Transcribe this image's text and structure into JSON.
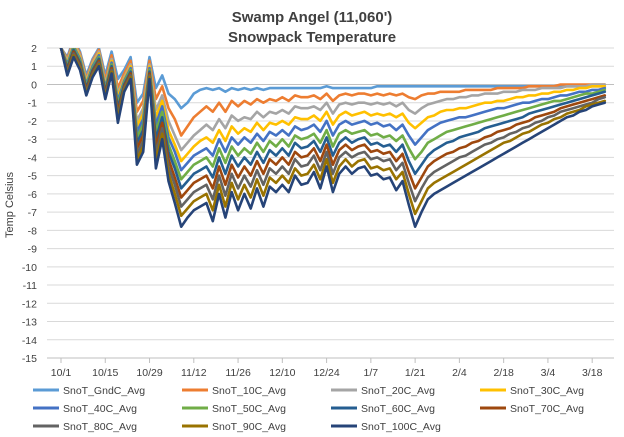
{
  "chart_data": {
    "type": "line",
    "title": "Swamp Angel (11,060')",
    "subtitle": "Snowpack Temperature",
    "xlabel": "",
    "ylabel": "Temp Celsius",
    "ylim": [
      -15,
      2
    ],
    "yticks": [
      2,
      1,
      0,
      -1,
      -2,
      -3,
      -4,
      -5,
      -6,
      -7,
      -8,
      -9,
      -10,
      -11,
      -12,
      -13,
      -14,
      -15
    ],
    "xlim": [
      0,
      173
    ],
    "xtick_labels": [
      "10/1",
      "10/15",
      "10/29",
      "11/12",
      "11/26",
      "12/10",
      "12/24",
      "1/7",
      "1/21",
      "2/4",
      "2/18",
      "3/4",
      "3/18"
    ],
    "xtick_days": [
      0,
      14,
      28,
      42,
      56,
      70,
      84,
      98,
      112,
      126,
      140,
      154,
      168
    ],
    "grid": "horizontal",
    "legend_position": "bottom",
    "x_days": [
      0,
      2,
      4,
      6,
      8,
      10,
      12,
      14,
      16,
      18,
      20,
      22,
      24,
      26,
      28,
      30,
      32,
      34,
      36,
      38,
      40,
      42,
      44,
      46,
      48,
      50,
      52,
      54,
      56,
      58,
      60,
      62,
      64,
      66,
      68,
      70,
      72,
      74,
      76,
      78,
      80,
      82,
      84,
      86,
      88,
      90,
      92,
      94,
      96,
      98,
      100,
      102,
      104,
      106,
      108,
      110,
      112,
      114,
      116,
      118,
      120,
      122,
      124,
      126,
      128,
      130,
      132,
      134,
      136,
      138,
      140,
      142,
      144,
      146,
      148,
      150,
      152,
      154,
      156,
      158,
      160,
      162,
      164,
      166,
      168,
      170,
      172
    ],
    "series": [
      {
        "name": "SnoT_GndC_Avg",
        "color": "#5b9bd5",
        "values": [
          2.0,
          1.5,
          2.5,
          1.8,
          0.5,
          1.4,
          2.0,
          0.5,
          1.8,
          0.3,
          0.8,
          1.5,
          -1.0,
          -0.5,
          1.5,
          -0.2,
          0.5,
          -0.5,
          -0.8,
          -1.3,
          -1.0,
          -0.5,
          -0.3,
          -0.2,
          -0.3,
          -0.2,
          -0.4,
          -0.2,
          -0.3,
          -0.2,
          -0.3,
          -0.2,
          -0.3,
          -0.2,
          -0.2,
          -0.2,
          -0.2,
          -0.2,
          -0.2,
          -0.2,
          -0.2,
          -0.2,
          -0.1,
          -0.2,
          -0.2,
          -0.2,
          -0.2,
          -0.2,
          -0.2,
          -0.2,
          -0.1,
          -0.1,
          -0.1,
          -0.1,
          -0.1,
          -0.1,
          -0.1,
          -0.1,
          -0.1,
          -0.1,
          -0.1,
          -0.1,
          -0.1,
          -0.1,
          -0.1,
          -0.1,
          -0.1,
          -0.1,
          -0.1,
          -0.1,
          -0.1,
          -0.1,
          -0.1,
          -0.1,
          -0.1,
          -0.1,
          -0.1,
          -0.1,
          -0.1,
          -0.1,
          -0.1,
          -0.1,
          -0.1,
          -0.1,
          -0.1,
          -0.1,
          -0.1
        ]
      },
      {
        "name": "SnoT_10C_Avg",
        "color": "#ed7d31",
        "values": [
          2.0,
          1.4,
          2.4,
          1.7,
          0.3,
          1.3,
          1.9,
          0.2,
          1.6,
          -0.2,
          0.6,
          1.3,
          -1.5,
          -0.9,
          1.3,
          -0.8,
          -0.1,
          -1.3,
          -1.9,
          -2.8,
          -2.3,
          -1.8,
          -1.5,
          -1.2,
          -1.5,
          -1.0,
          -1.5,
          -0.9,
          -1.2,
          -0.9,
          -1.1,
          -0.8,
          -1.0,
          -0.8,
          -0.9,
          -0.7,
          -0.9,
          -0.6,
          -0.7,
          -0.7,
          -0.6,
          -0.8,
          -0.5,
          -0.9,
          -0.6,
          -0.5,
          -0.6,
          -0.5,
          -0.5,
          -0.6,
          -0.5,
          -0.6,
          -0.5,
          -0.6,
          -0.5,
          -0.7,
          -0.8,
          -0.6,
          -0.5,
          -0.5,
          -0.4,
          -0.4,
          -0.4,
          -0.4,
          -0.3,
          -0.3,
          -0.3,
          -0.3,
          -0.3,
          -0.2,
          -0.2,
          -0.2,
          -0.2,
          -0.2,
          -0.1,
          -0.1,
          -0.1,
          -0.1,
          -0.1,
          0.0,
          0.0,
          0.0,
          0.0,
          0.0,
          0.0,
          0.0,
          0.0
        ]
      },
      {
        "name": "SnoT_20C_Avg",
        "color": "#a5a5a5",
        "values": [
          2.0,
          1.3,
          2.3,
          1.6,
          0.2,
          1.2,
          1.8,
          0.0,
          1.4,
          -0.5,
          0.4,
          1.1,
          -2.0,
          -1.3,
          1.1,
          -1.4,
          -0.6,
          -2.0,
          -2.8,
          -3.6,
          -3.2,
          -2.8,
          -2.5,
          -2.2,
          -2.5,
          -1.9,
          -2.4,
          -1.7,
          -2.0,
          -1.8,
          -1.9,
          -1.5,
          -1.8,
          -1.5,
          -1.6,
          -1.4,
          -1.6,
          -1.2,
          -1.3,
          -1.3,
          -1.2,
          -1.4,
          -1.0,
          -1.6,
          -1.1,
          -1.0,
          -1.1,
          -1.0,
          -1.0,
          -1.1,
          -1.0,
          -1.1,
          -1.0,
          -1.2,
          -1.0,
          -1.4,
          -1.6,
          -1.3,
          -1.1,
          -1.0,
          -0.9,
          -0.8,
          -0.8,
          -0.7,
          -0.7,
          -0.6,
          -0.6,
          -0.5,
          -0.5,
          -0.5,
          -0.4,
          -0.4,
          -0.4,
          -0.3,
          -0.3,
          -0.3,
          -0.2,
          -0.2,
          -0.2,
          -0.2,
          -0.1,
          -0.1,
          -0.1,
          -0.1,
          0.0,
          0.0,
          0.0
        ]
      },
      {
        "name": "SnoT_30C_Avg",
        "color": "#ffc000",
        "values": [
          2.0,
          1.2,
          2.2,
          1.5,
          0.1,
          1.1,
          1.7,
          -0.1,
          1.3,
          -0.7,
          0.3,
          1.0,
          -2.3,
          -1.6,
          1.0,
          -1.8,
          -0.9,
          -2.5,
          -3.3,
          -4.2,
          -3.8,
          -3.4,
          -3.1,
          -2.9,
          -3.2,
          -2.5,
          -3.1,
          -2.3,
          -2.7,
          -2.4,
          -2.6,
          -2.1,
          -2.5,
          -2.1,
          -2.2,
          -2.0,
          -2.2,
          -1.8,
          -1.9,
          -1.9,
          -1.7,
          -2.0,
          -1.5,
          -2.2,
          -1.7,
          -1.5,
          -1.7,
          -1.6,
          -1.5,
          -1.7,
          -1.6,
          -1.7,
          -1.6,
          -1.8,
          -1.6,
          -2.1,
          -2.4,
          -2.1,
          -1.8,
          -1.7,
          -1.5,
          -1.4,
          -1.4,
          -1.3,
          -1.3,
          -1.2,
          -1.1,
          -1.0,
          -1.0,
          -0.9,
          -0.9,
          -0.8,
          -0.7,
          -0.7,
          -0.6,
          -0.6,
          -0.5,
          -0.5,
          -0.4,
          -0.4,
          -0.3,
          -0.3,
          -0.2,
          -0.2,
          -0.1,
          -0.1,
          -0.1
        ]
      },
      {
        "name": "SnoT_40C_Avg",
        "color": "#4472c4",
        "values": [
          2.0,
          1.1,
          2.1,
          1.4,
          0.0,
          1.0,
          1.6,
          -0.2,
          1.2,
          -0.9,
          0.2,
          0.9,
          -2.6,
          -1.9,
          0.9,
          -2.2,
          -1.2,
          -2.9,
          -3.7,
          -4.7,
          -4.3,
          -3.9,
          -3.7,
          -3.5,
          -3.9,
          -3.0,
          -3.7,
          -2.9,
          -3.3,
          -2.9,
          -3.2,
          -2.7,
          -3.1,
          -2.6,
          -2.8,
          -2.5,
          -2.8,
          -2.3,
          -2.5,
          -2.4,
          -2.2,
          -2.6,
          -2.0,
          -2.8,
          -2.2,
          -2.0,
          -2.2,
          -2.1,
          -2.0,
          -2.2,
          -2.1,
          -2.3,
          -2.2,
          -2.5,
          -2.2,
          -2.8,
          -3.3,
          -2.9,
          -2.5,
          -2.3,
          -2.1,
          -2.0,
          -1.9,
          -1.8,
          -1.8,
          -1.7,
          -1.6,
          -1.5,
          -1.4,
          -1.3,
          -1.3,
          -1.2,
          -1.1,
          -1.0,
          -1.0,
          -0.9,
          -0.8,
          -0.8,
          -0.7,
          -0.6,
          -0.6,
          -0.5,
          -0.4,
          -0.4,
          -0.3,
          -0.3,
          -0.2
        ]
      },
      {
        "name": "SnoT_50C_Avg",
        "color": "#70ad47",
        "values": [
          2.0,
          1.0,
          2.0,
          1.3,
          -0.1,
          0.9,
          1.5,
          -0.3,
          1.1,
          -1.1,
          0.1,
          0.8,
          -2.9,
          -2.2,
          0.8,
          -2.6,
          -1.5,
          -3.3,
          -4.2,
          -5.2,
          -4.8,
          -4.4,
          -4.2,
          -4.0,
          -4.5,
          -3.5,
          -4.3,
          -3.4,
          -3.9,
          -3.5,
          -3.8,
          -3.2,
          -3.7,
          -3.1,
          -3.4,
          -3.0,
          -3.4,
          -2.8,
          -3.0,
          -2.9,
          -2.7,
          -3.2,
          -2.5,
          -3.4,
          -2.7,
          -2.5,
          -2.7,
          -2.6,
          -2.5,
          -2.8,
          -2.7,
          -2.9,
          -2.8,
          -3.1,
          -2.8,
          -3.5,
          -4.1,
          -3.7,
          -3.2,
          -3.0,
          -2.8,
          -2.6,
          -2.5,
          -2.4,
          -2.3,
          -2.2,
          -2.1,
          -2.0,
          -1.9,
          -1.8,
          -1.7,
          -1.6,
          -1.5,
          -1.4,
          -1.3,
          -1.2,
          -1.1,
          -1.0,
          -0.9,
          -0.9,
          -0.8,
          -0.7,
          -0.6,
          -0.5,
          -0.5,
          -0.4,
          -0.3
        ]
      },
      {
        "name": "SnoT_60C_Avg",
        "color": "#255e91",
        "values": [
          2.0,
          0.9,
          1.9,
          1.2,
          -0.2,
          0.8,
          1.4,
          -0.4,
          1.0,
          -1.3,
          0.0,
          0.7,
          -3.2,
          -2.5,
          0.7,
          -3.0,
          -1.8,
          -3.7,
          -4.6,
          -5.7,
          -5.3,
          -4.9,
          -4.7,
          -4.5,
          -5.1,
          -4.0,
          -4.9,
          -3.9,
          -4.5,
          -4.0,
          -4.4,
          -3.7,
          -4.3,
          -3.6,
          -3.9,
          -3.5,
          -3.9,
          -3.2,
          -3.5,
          -3.4,
          -3.1,
          -3.7,
          -2.9,
          -3.9,
          -3.2,
          -2.9,
          -3.2,
          -3.0,
          -2.9,
          -3.3,
          -3.2,
          -3.4,
          -3.3,
          -3.7,
          -3.3,
          -4.2,
          -4.9,
          -4.4,
          -3.9,
          -3.6,
          -3.4,
          -3.2,
          -3.1,
          -2.9,
          -2.8,
          -2.7,
          -2.6,
          -2.4,
          -2.3,
          -2.2,
          -2.1,
          -2.0,
          -1.9,
          -1.8,
          -1.6,
          -1.5,
          -1.4,
          -1.3,
          -1.2,
          -1.1,
          -1.0,
          -0.9,
          -0.8,
          -0.7,
          -0.6,
          -0.5,
          -0.4
        ]
      },
      {
        "name": "SnoT_70C_Avg",
        "color": "#9e480e",
        "values": [
          2.0,
          0.8,
          1.8,
          1.1,
          -0.3,
          0.7,
          1.3,
          -0.5,
          0.9,
          -1.5,
          -0.1,
          0.6,
          -3.5,
          -2.8,
          0.6,
          -3.4,
          -2.1,
          -4.1,
          -5.1,
          -6.2,
          -5.8,
          -5.4,
          -5.2,
          -5.0,
          -5.7,
          -4.5,
          -5.5,
          -4.4,
          -5.1,
          -4.5,
          -5.0,
          -4.2,
          -4.9,
          -4.1,
          -4.4,
          -4.0,
          -4.4,
          -3.7,
          -4.0,
          -3.9,
          -3.5,
          -4.2,
          -3.3,
          -4.4,
          -3.6,
          -3.3,
          -3.6,
          -3.4,
          -3.3,
          -3.7,
          -3.6,
          -3.8,
          -3.7,
          -4.2,
          -3.8,
          -4.8,
          -5.7,
          -5.1,
          -4.5,
          -4.2,
          -4.0,
          -3.8,
          -3.7,
          -3.5,
          -3.4,
          -3.2,
          -3.1,
          -2.9,
          -2.8,
          -2.6,
          -2.5,
          -2.4,
          -2.2,
          -2.1,
          -2.0,
          -1.8,
          -1.7,
          -1.6,
          -1.5,
          -1.3,
          -1.2,
          -1.1,
          -1.0,
          -0.9,
          -0.8,
          -0.7,
          -0.6
        ]
      },
      {
        "name": "SnoT_80C_Avg",
        "color": "#636363",
        "values": [
          2.0,
          0.7,
          1.7,
          1.0,
          -0.4,
          0.6,
          1.2,
          -0.6,
          0.8,
          -1.7,
          -0.2,
          0.5,
          -3.8,
          -3.1,
          0.5,
          -3.8,
          -2.4,
          -4.5,
          -5.5,
          -6.7,
          -6.3,
          -5.9,
          -5.7,
          -5.5,
          -6.3,
          -5.0,
          -6.1,
          -4.9,
          -5.7,
          -5.0,
          -5.6,
          -4.7,
          -5.5,
          -4.6,
          -4.9,
          -4.5,
          -4.9,
          -4.1,
          -4.5,
          -4.4,
          -3.9,
          -4.7,
          -3.7,
          -4.9,
          -4.0,
          -3.7,
          -4.0,
          -3.8,
          -3.7,
          -4.1,
          -4.0,
          -4.2,
          -4.1,
          -4.7,
          -4.3,
          -5.4,
          -6.4,
          -5.7,
          -5.1,
          -4.8,
          -4.6,
          -4.4,
          -4.2,
          -4.0,
          -3.9,
          -3.7,
          -3.5,
          -3.3,
          -3.2,
          -3.0,
          -2.9,
          -2.7,
          -2.6,
          -2.4,
          -2.3,
          -2.1,
          -2.0,
          -1.8,
          -1.7,
          -1.5,
          -1.4,
          -1.3,
          -1.2,
          -1.1,
          -1.0,
          -0.8,
          -0.7
        ]
      },
      {
        "name": "SnoT_90C_Avg",
        "color": "#997300",
        "values": [
          2.0,
          0.6,
          1.6,
          0.9,
          -0.5,
          0.5,
          1.1,
          -0.7,
          0.7,
          -1.9,
          -0.3,
          0.4,
          -4.1,
          -3.4,
          0.4,
          -4.2,
          -2.7,
          -4.9,
          -6.0,
          -7.2,
          -6.8,
          -6.4,
          -6.2,
          -6.0,
          -6.9,
          -5.5,
          -6.7,
          -5.4,
          -6.3,
          -5.5,
          -6.2,
          -5.2,
          -6.1,
          -5.1,
          -5.4,
          -5.0,
          -5.4,
          -4.6,
          -5.0,
          -4.9,
          -4.4,
          -5.2,
          -4.1,
          -5.4,
          -4.5,
          -4.1,
          -4.5,
          -4.2,
          -4.1,
          -4.6,
          -4.5,
          -4.7,
          -4.6,
          -5.2,
          -4.8,
          -6.0,
          -7.1,
          -6.4,
          -5.7,
          -5.4,
          -5.2,
          -5.0,
          -4.8,
          -4.6,
          -4.4,
          -4.2,
          -4.0,
          -3.8,
          -3.6,
          -3.4,
          -3.2,
          -3.1,
          -2.9,
          -2.7,
          -2.6,
          -2.4,
          -2.2,
          -2.1,
          -1.9,
          -1.8,
          -1.6,
          -1.5,
          -1.4,
          -1.2,
          -1.1,
          -1.0,
          -0.9
        ]
      },
      {
        "name": "SnoT_100C_Avg",
        "color": "#264478",
        "values": [
          2.0,
          0.5,
          1.5,
          0.8,
          -0.6,
          0.4,
          1.0,
          -0.8,
          0.6,
          -2.1,
          -0.4,
          0.3,
          -4.4,
          -3.7,
          0.3,
          -4.6,
          -3.0,
          -5.3,
          -6.5,
          -7.8,
          -7.3,
          -6.9,
          -6.7,
          -6.5,
          -7.5,
          -6.0,
          -7.3,
          -5.9,
          -6.9,
          -6.0,
          -6.8,
          -5.7,
          -6.7,
          -5.6,
          -5.9,
          -5.5,
          -5.9,
          -5.0,
          -5.5,
          -5.4,
          -4.8,
          -5.7,
          -4.5,
          -5.9,
          -4.9,
          -4.5,
          -4.9,
          -4.6,
          -4.5,
          -5.0,
          -4.9,
          -5.2,
          -5.1,
          -5.8,
          -5.3,
          -6.6,
          -7.8,
          -7.0,
          -6.3,
          -6.0,
          -5.8,
          -5.6,
          -5.4,
          -5.2,
          -5.0,
          -4.8,
          -4.6,
          -4.4,
          -4.2,
          -4.0,
          -3.8,
          -3.6,
          -3.4,
          -3.2,
          -3.0,
          -2.8,
          -2.6,
          -2.4,
          -2.2,
          -2.0,
          -1.8,
          -1.7,
          -1.5,
          -1.4,
          -1.2,
          -1.1,
          -1.0
        ]
      }
    ]
  }
}
